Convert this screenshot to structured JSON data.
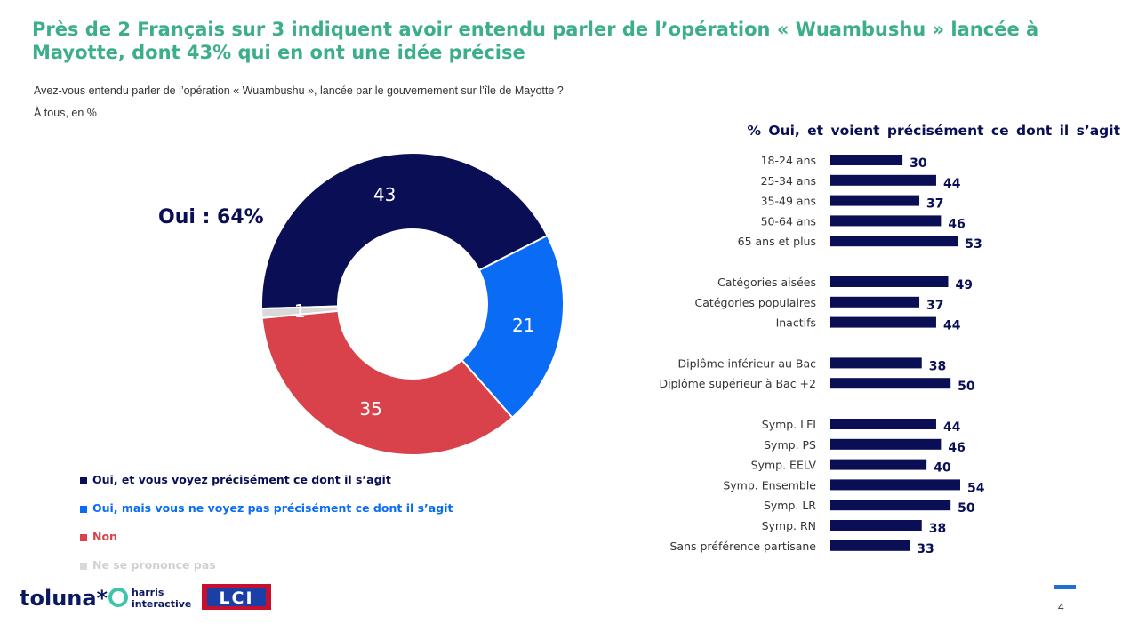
{
  "title": "Près de 2 Français sur 3 indiquent avoir entendu parler de l’opération « Wuambushu » lancée à Mayotte, dont 43% qui en ont une idée précise",
  "question": "Avez-vous entendu parler de l’opération « Wuambushu », lancée par le gouvernement sur l’île de Mayotte ?",
  "base": "À tous, en %",
  "oui_total": "Oui : 64%",
  "page_number": "4",
  "colors": {
    "dark_navy": "#0a0f55",
    "blue": "#0a6cf5",
    "red": "#d9424b",
    "grey": "#d9d9d9",
    "green_title": "#3cae8c"
  },
  "logos": {
    "toluna": "toluna*",
    "harris": "harris interactive",
    "lci": "LCI"
  },
  "chart_data": [
    {
      "type": "pie",
      "donut": true,
      "slices": [
        {
          "name": "Oui, et vous voyez précisément ce dont il s’agit",
          "value": 43,
          "label": "43",
          "color": "#0a0f55"
        },
        {
          "name": "Oui, mais vous ne voyez pas précisément ce dont il s’agit",
          "value": 21,
          "label": "21",
          "color": "#0a6cf5"
        },
        {
          "name": "Non",
          "value": 35,
          "label": "35",
          "color": "#d9424b"
        },
        {
          "name": "Ne se prononce pas",
          "value": 1,
          "label": "1",
          "color": "#d9d9d9"
        }
      ],
      "legend_position": "bottom-left"
    },
    {
      "type": "bar",
      "orientation": "horizontal",
      "title": "% Oui,  et voient précisément ce dont il s’agit",
      "xlim": [
        0,
        60
      ],
      "color": "#0a0f55",
      "groups": [
        {
          "categories": [
            "18-24 ans",
            "25-34 ans",
            "35-49 ans",
            "50-64 ans",
            "65 ans et plus"
          ],
          "values": [
            30,
            44,
            37,
            46,
            53
          ]
        },
        {
          "categories": [
            "Catégories aisées",
            "Catégories populaires",
            "Inactifs"
          ],
          "values": [
            49,
            37,
            44
          ]
        },
        {
          "categories": [
            "Diplôme inférieur au Bac",
            "Diplôme supérieur à Bac +2"
          ],
          "values": [
            38,
            50
          ]
        },
        {
          "categories": [
            "Symp. LFI",
            "Symp. PS",
            "Symp. EELV",
            "Symp. Ensemble",
            "Symp. LR",
            "Symp. RN",
            "Sans préférence partisane"
          ],
          "values": [
            44,
            46,
            40,
            54,
            50,
            38,
            33
          ]
        }
      ]
    }
  ]
}
